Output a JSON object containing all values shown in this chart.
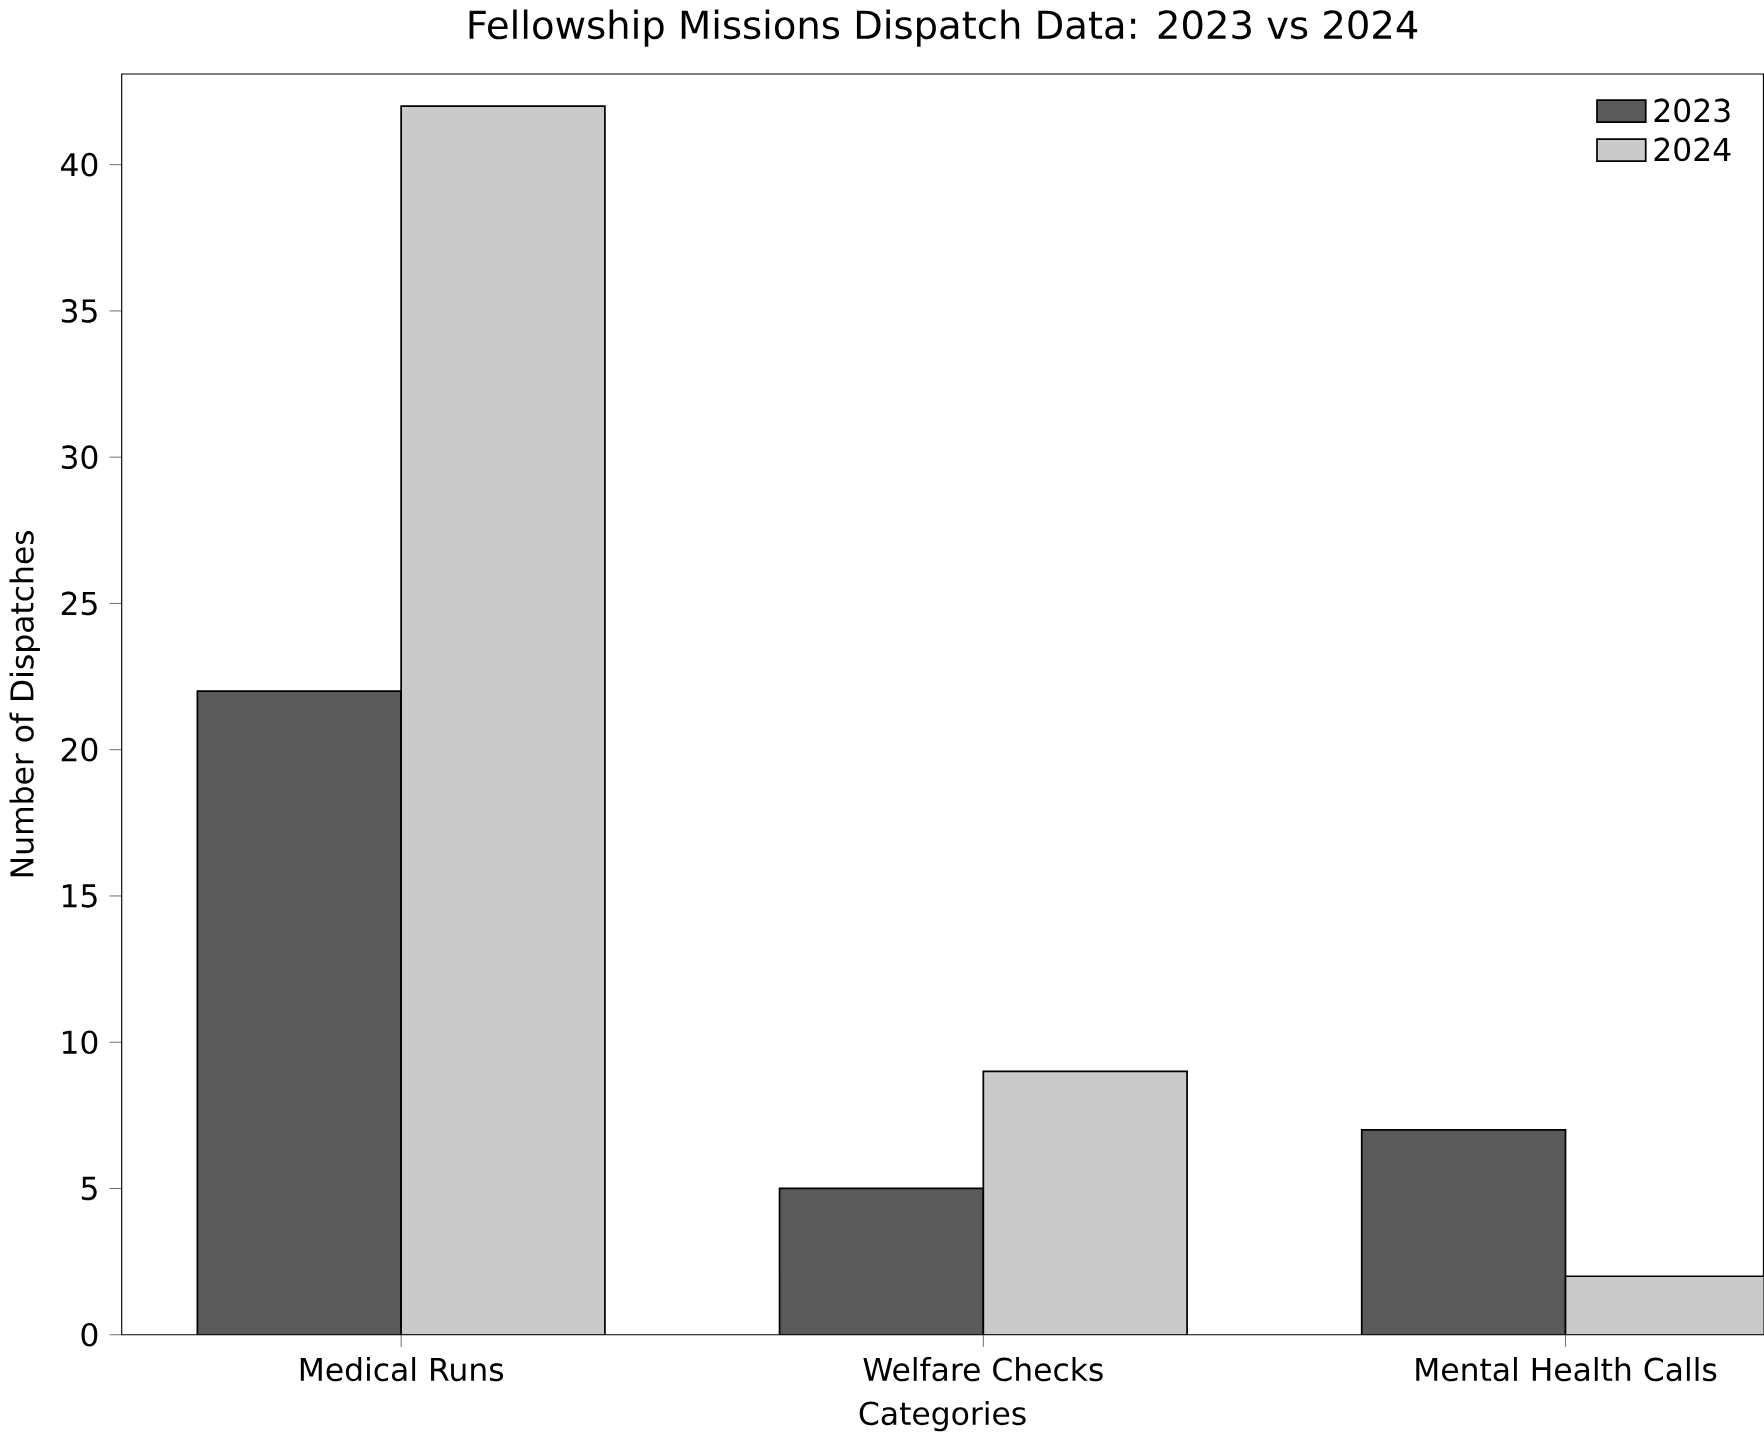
{
  "chart_data": {
    "type": "bar",
    "title": "Fellowship Missions Dispatch Data: 2023 vs 2024",
    "xlabel": "Categories",
    "ylabel": "Number of Dispatches",
    "categories": [
      "Medical Runs",
      "Welfare Checks",
      "Mental Health Calls"
    ],
    "series": [
      {
        "name": "2023",
        "color": "#5a5a5a",
        "values": [
          22,
          5,
          7
        ]
      },
      {
        "name": "2024",
        "color": "#cacaca",
        "values": [
          42,
          9,
          2
        ]
      }
    ],
    "ylim": [
      0,
      43.1
    ],
    "yticks": [
      0,
      5,
      10,
      15,
      20,
      25,
      30,
      35,
      40
    ],
    "legend": "top right",
    "grid": false
  }
}
